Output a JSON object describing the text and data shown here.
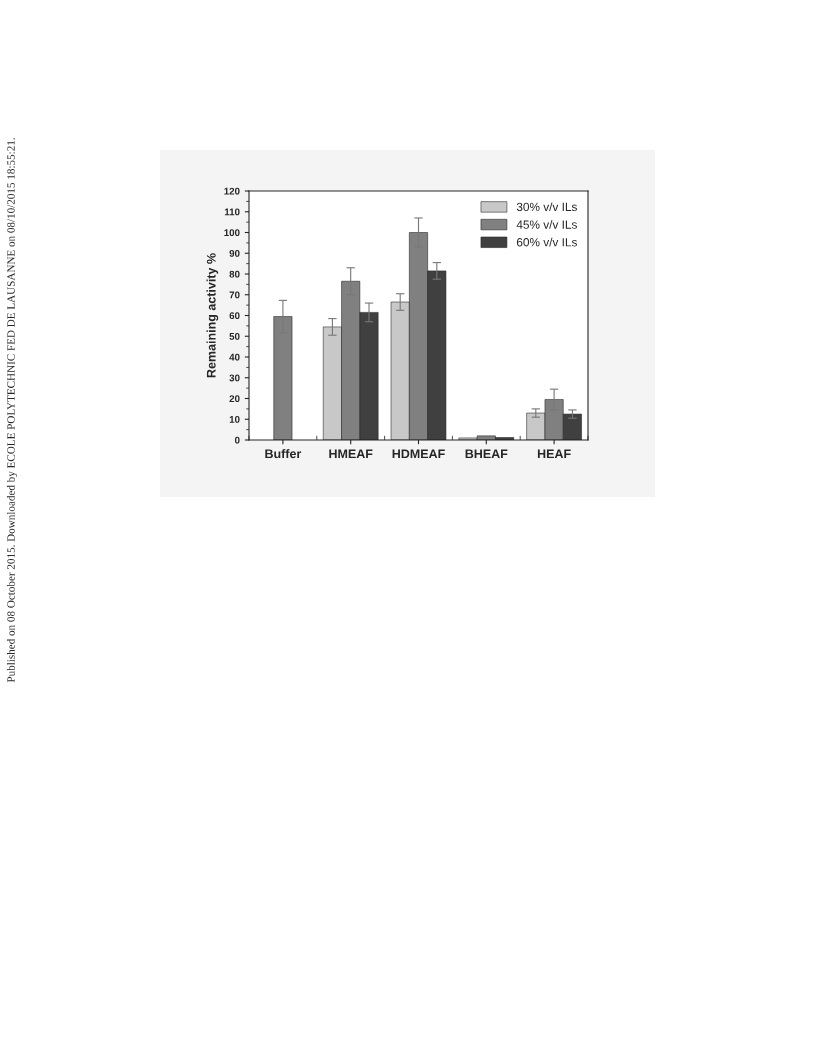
{
  "chart_data": {
    "type": "bar",
    "ylabel": "Remaining activity %",
    "categories": [
      "Buffer",
      "HMEAF",
      "HDMEAF",
      "BHEAF",
      "HEAF"
    ],
    "series": [
      {
        "name": "30% v/v ILs",
        "color": "#c8c8c8",
        "values": [
          null,
          54.5,
          66.5,
          1,
          13
        ],
        "errors": [
          null,
          4,
          4,
          null,
          2
        ]
      },
      {
        "name": "45% v/v ILs",
        "color": "#808080",
        "values": [
          59.5,
          76.5,
          100,
          2,
          19.5
        ],
        "errors": [
          7.8,
          6.5,
          7,
          null,
          5
        ]
      },
      {
        "name": "60% v/v ILs",
        "color": "#404040",
        "values": [
          null,
          61.5,
          81.5,
          1.2,
          12.5
        ],
        "errors": [
          null,
          4.5,
          4,
          null,
          2
        ]
      }
    ],
    "ylim": [
      0,
      120
    ],
    "yticks": [
      0,
      10,
      20,
      30,
      40,
      50,
      60,
      70,
      80,
      90,
      100,
      110,
      120
    ],
    "grid": false,
    "legend": "top right",
    "annotations": [
      "Published on 08 October 2015. Downloaded by ECOLE POLYTECHNIC FED DE LAUSANNE on 08/10/2015 18:55:21."
    ]
  }
}
